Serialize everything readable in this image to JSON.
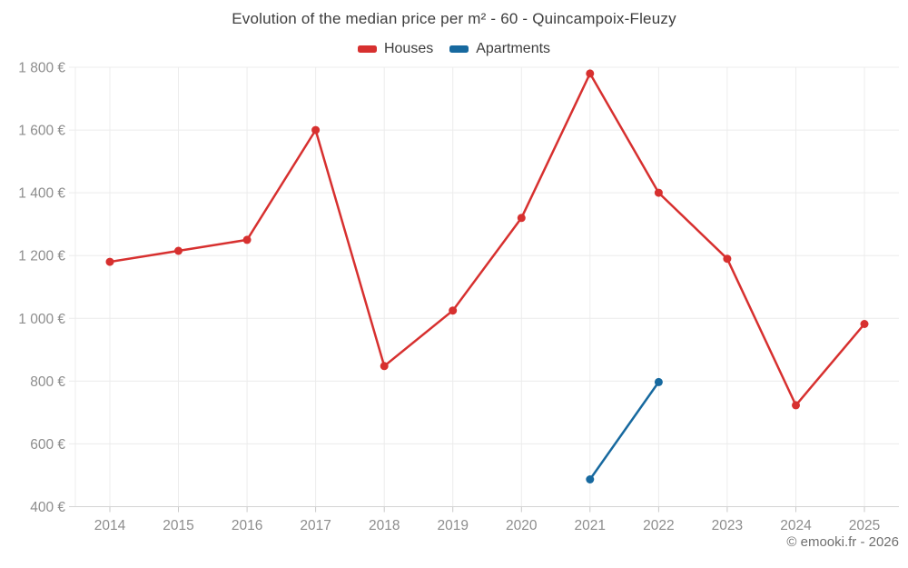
{
  "chart": {
    "title": "Evolution of the median price per m² - 60 - Quincampoix-Fleuzy",
    "footer": "© emooki.fr - 2026"
  },
  "colors": {
    "houses": "#d7302f",
    "apartments": "#17699f",
    "grid": "#ececec",
    "baseline": "#d4d4d4",
    "tick": "#c9c9c9",
    "axis_label": "#8d8d8d",
    "title_text": "#3d3d3d",
    "footer_text": "#6f6f6f"
  },
  "chart_data": {
    "type": "line",
    "title": "Evolution of the median price per m² - 60 - Quincampoix-Fleuzy",
    "categories": [
      "2014",
      "2015",
      "2016",
      "2017",
      "2018",
      "2019",
      "2020",
      "2021",
      "2022",
      "2023",
      "2024",
      "2025"
    ],
    "series": [
      {
        "name": "Houses",
        "color": "#d7302f",
        "values": [
          1180,
          1215,
          1250,
          1600,
          848,
          1025,
          1320,
          1780,
          1400,
          1190,
          723,
          982
        ]
      },
      {
        "name": "Apartments",
        "color": "#17699f",
        "values": [
          null,
          null,
          null,
          null,
          null,
          null,
          null,
          487,
          797,
          null,
          null,
          null
        ]
      }
    ],
    "xlabel": "",
    "ylabel": "",
    "ylim": [
      400,
      1800
    ],
    "yticks": [
      400,
      600,
      800,
      1000,
      1200,
      1400,
      1600,
      1800
    ],
    "ytick_labels": [
      "400 €",
      "600 €",
      "800 €",
      "1 000 €",
      "1 200 €",
      "1 400 €",
      "1 600 €",
      "1 800 €"
    ],
    "grid": true,
    "legend_position": "top",
    "marker": "circle"
  }
}
